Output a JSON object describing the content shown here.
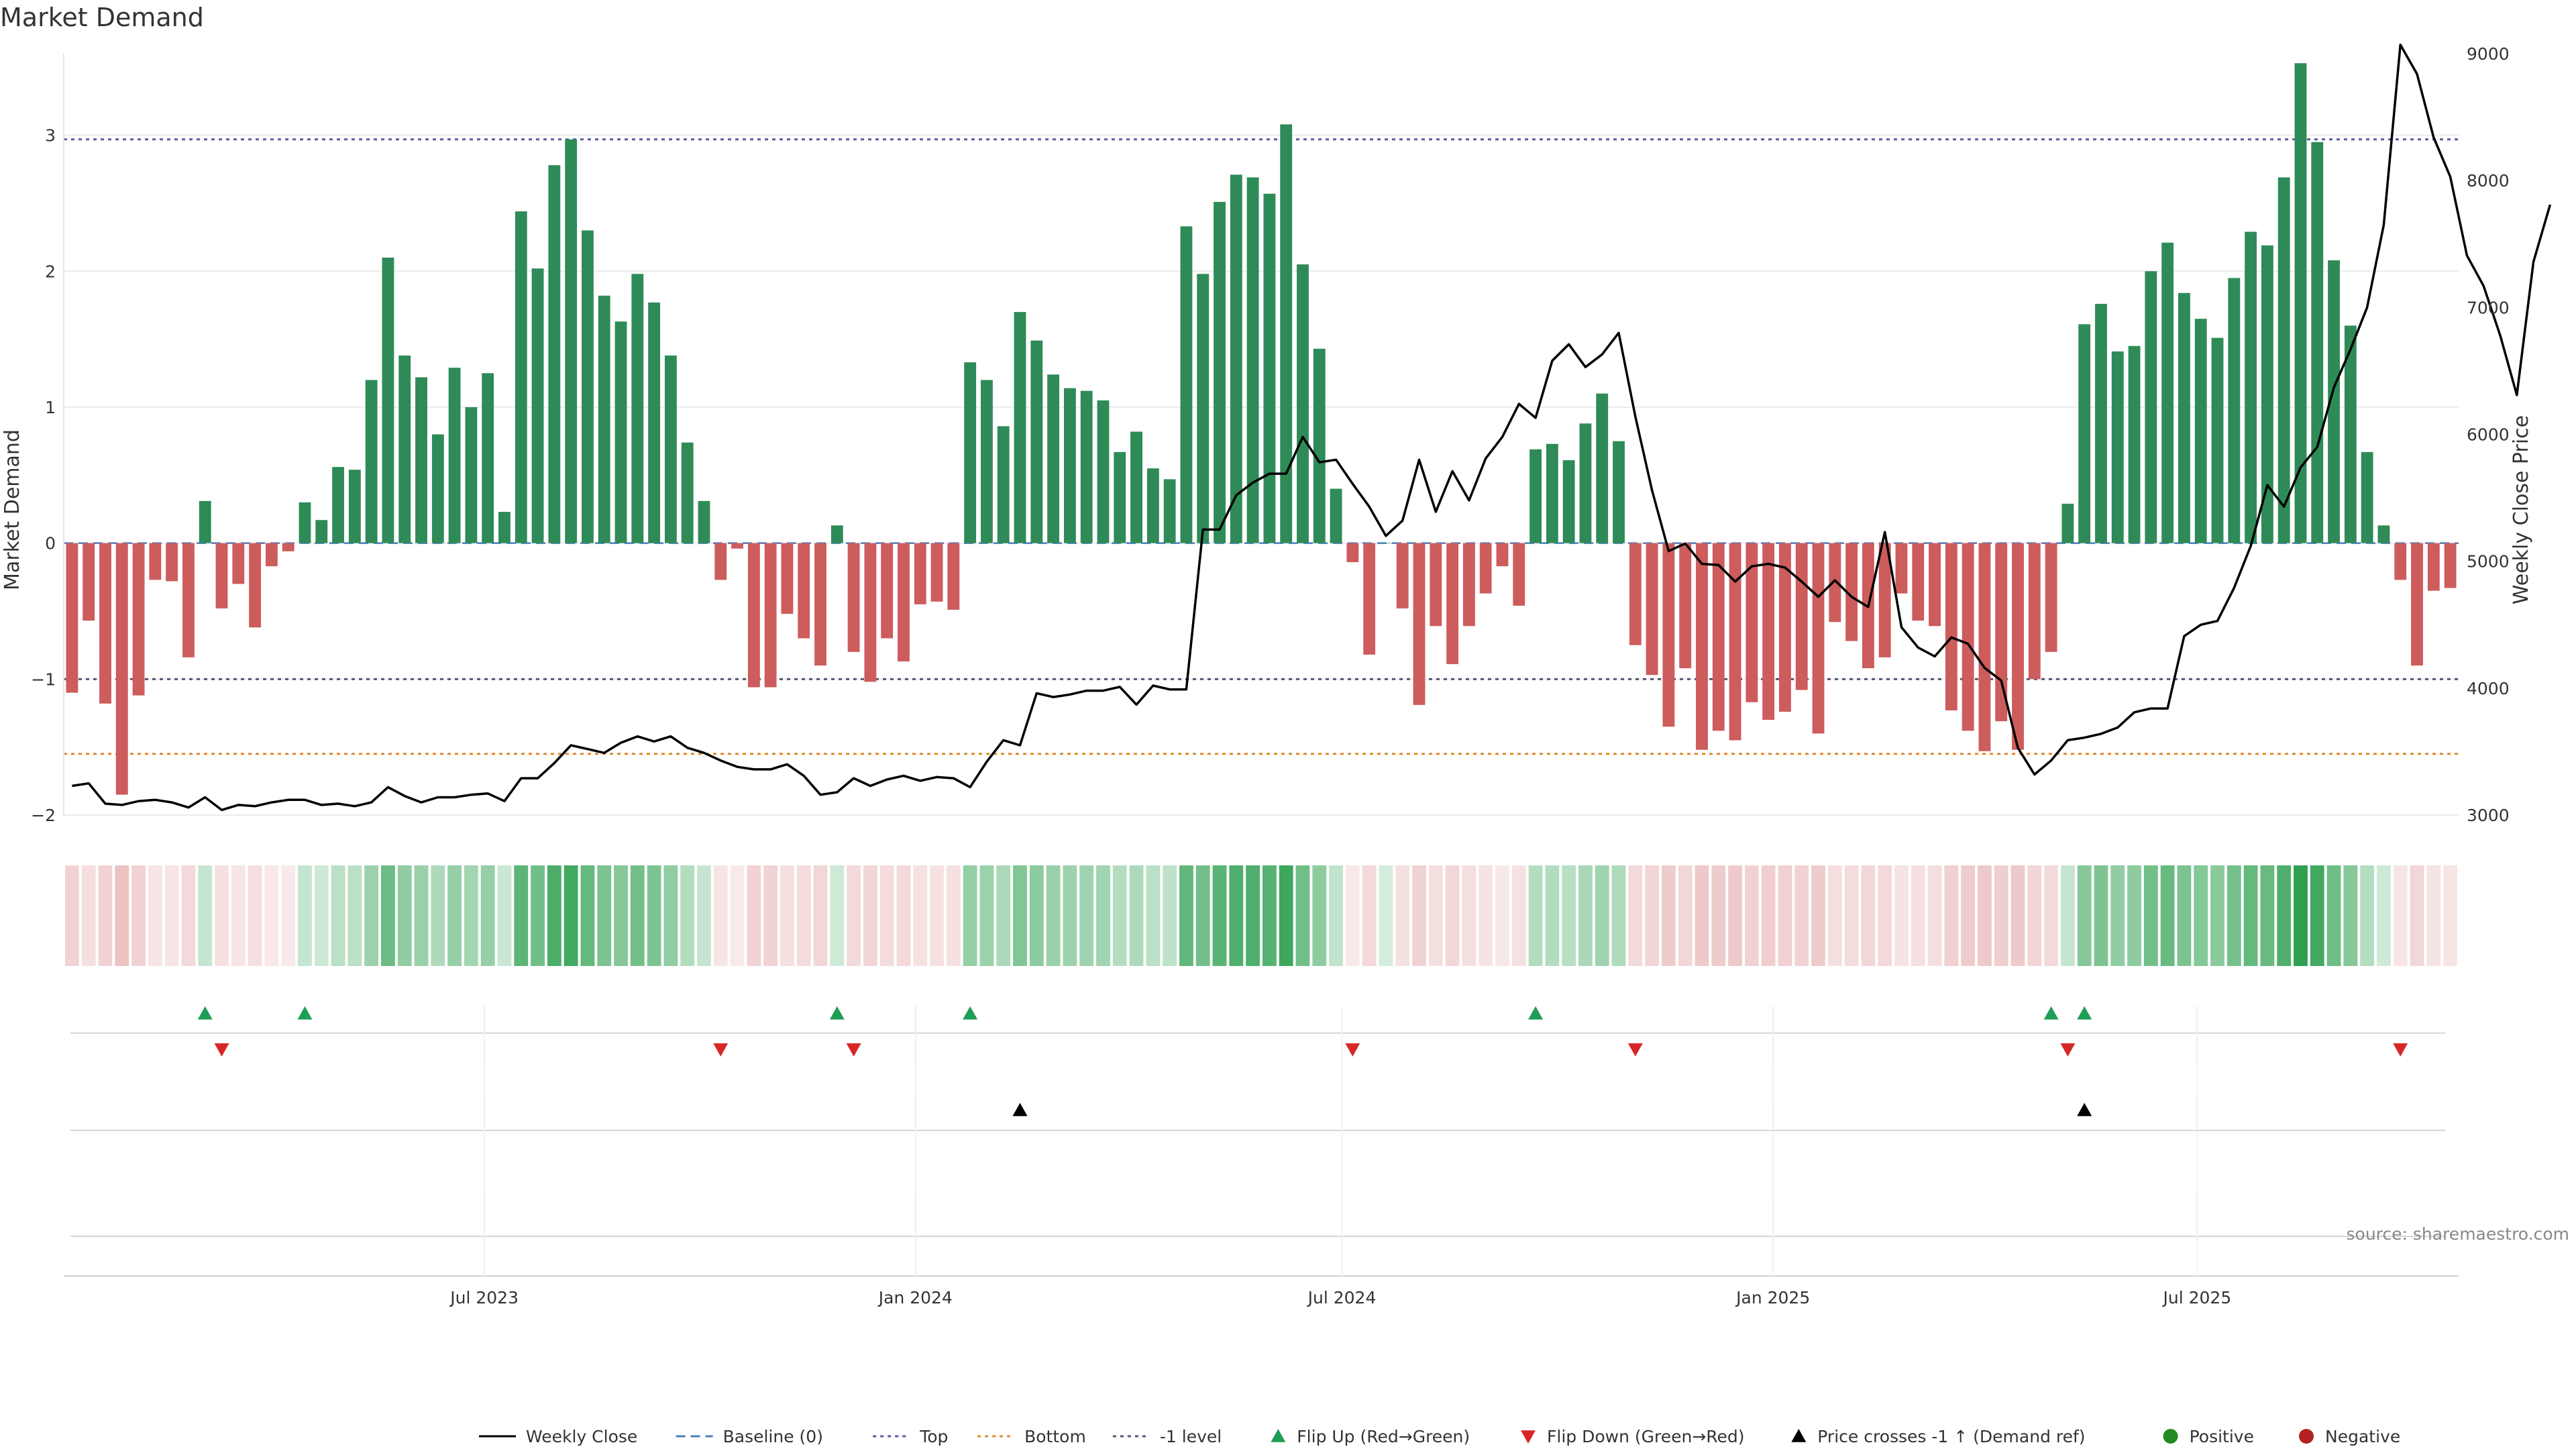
{
  "chart_data": {
    "type": "bar",
    "title": "Market Demand",
    "ylabel": "Market Demand",
    "y2label": "Weekly Close Price",
    "source": "source: sharemaestro.com",
    "ylim": [
      -2.0,
      3.6
    ],
    "y2lim": [
      3000,
      9000
    ],
    "yticks": [
      "−2",
      "−1",
      "0",
      "1",
      "2",
      "3"
    ],
    "y2ticks": [
      "3000",
      "4000",
      "5000",
      "6000",
      "7000",
      "8000",
      "9000"
    ],
    "x_start": "2023-01-06",
    "x_end": "2025-10-17",
    "xticks": [
      {
        "date": "2023-07-01",
        "label": "Jul 2023"
      },
      {
        "date": "2024-01-01",
        "label": "Jan 2024"
      },
      {
        "date": "2024-07-01",
        "label": "Jul 2024"
      },
      {
        "date": "2025-01-01",
        "label": "Jan 2025"
      },
      {
        "date": "2025-07-01",
        "label": "Jul 2025"
      }
    ],
    "reference_lines": [
      {
        "name": "Top",
        "value": 2.97,
        "color": "#5b5ba6",
        "style": "dotted"
      },
      {
        "name": "Bottom",
        "value": -1.55,
        "color": "#e08a2c",
        "style": "dotted"
      },
      {
        "name": "-1 level",
        "value": -1.0,
        "color": "#555577",
        "style": "dotted"
      }
    ],
    "colors": {
      "positive": "#2e8b57",
      "negative": "#cd5c5c",
      "line": "#000000",
      "flip_up": "#1f9d55",
      "flip_down": "#d62728",
      "cross": "#000000"
    },
    "series": [
      {
        "name": "Market Demand",
        "values": [
          -1.1,
          -0.57,
          -1.18,
          -1.85,
          -1.12,
          -0.27,
          -0.28,
          -0.84,
          0.31,
          -0.48,
          -0.3,
          -0.62,
          -0.17,
          -0.06,
          0.3,
          0.17,
          0.56,
          0.54,
          1.2,
          2.1,
          1.38,
          1.22,
          0.8,
          1.29,
          1.0,
          1.25,
          0.23,
          2.44,
          2.02,
          2.78,
          2.97,
          2.3,
          1.82,
          1.63,
          1.98,
          1.77,
          1.38,
          0.74,
          0.31,
          -0.27,
          -0.04,
          -1.06,
          -1.06,
          -0.52,
          -0.7,
          -0.9,
          0.13,
          -0.8,
          -1.02,
          -0.7,
          -0.87,
          -0.45,
          -0.43,
          -0.49,
          1.33,
          1.2,
          0.86,
          1.7,
          1.49,
          1.24,
          1.14,
          1.12,
          1.05,
          0.67,
          0.82,
          0.55,
          0.47,
          2.33,
          1.98,
          2.51,
          2.71,
          2.69,
          2.57,
          3.08,
          2.05,
          1.43,
          0.4,
          -0.14,
          -0.82,
          0.0,
          -0.48,
          -1.19,
          -0.61,
          -0.89,
          -0.61,
          -0.37,
          -0.17,
          -0.46,
          0.69,
          0.73,
          0.61,
          0.88,
          1.1,
          0.75,
          -0.75,
          -0.97,
          -1.35,
          -0.92,
          -1.52,
          -1.38,
          -1.45,
          -1.17,
          -1.3,
          -1.24,
          -1.08,
          -1.4,
          -0.58,
          -0.72,
          -0.92,
          -0.84,
          -0.37,
          -0.57,
          -0.61,
          -1.23,
          -1.38,
          -1.53,
          -1.31,
          -1.52,
          -1.0,
          -0.8,
          0.29,
          1.61,
          1.76,
          1.41,
          1.45,
          2.0,
          2.21,
          1.84,
          1.65,
          1.51,
          1.95,
          2.29,
          2.19,
          2.69,
          3.53,
          2.95,
          2.08,
          1.6,
          0.67,
          0.13,
          -0.27,
          -0.9,
          -0.35,
          -0.33
        ]
      },
      {
        "name": "Weekly Close",
        "values": [
          3230,
          3250,
          3090,
          3080,
          3110,
          3120,
          3100,
          3060,
          3140,
          3040,
          3080,
          3070,
          3100,
          3120,
          3120,
          3080,
          3090,
          3070,
          3100,
          3220,
          3150,
          3100,
          3140,
          3140,
          3160,
          3170,
          3110,
          3290,
          3290,
          3410,
          3550,
          3520,
          3490,
          3570,
          3620,
          3580,
          3620,
          3530,
          3490,
          3430,
          3380,
          3360,
          3360,
          3400,
          3310,
          3160,
          3180,
          3290,
          3230,
          3280,
          3310,
          3270,
          3300,
          3290,
          3220,
          3420,
          3590,
          3550,
          3960,
          3930,
          3950,
          3980,
          3980,
          4010,
          3870,
          4020,
          3990,
          3990,
          5250,
          5250,
          5520,
          5620,
          5690,
          5690,
          5980,
          5780,
          5800,
          5610,
          5430,
          5200,
          5320,
          5800,
          5390,
          5710,
          5480,
          5810,
          5980,
          6240,
          6130,
          6580,
          6710,
          6530,
          6630,
          6800,
          6140,
          5560,
          5080,
          5140,
          4980,
          4970,
          4840,
          4960,
          4980,
          4950,
          4840,
          4720,
          4850,
          4720,
          4640,
          5230,
          4480,
          4320,
          4250,
          4400,
          4350,
          4160,
          4060,
          3530,
          3320,
          3430,
          3590,
          3610,
          3640,
          3690,
          3810,
          3840,
          3840,
          4410,
          4500,
          4530,
          4790,
          5120,
          5600,
          5430,
          5740,
          5900,
          6370,
          6670,
          7000,
          7650,
          9070,
          8840,
          8340,
          8030,
          7410,
          7170,
          6780,
          6310,
          7360,
          7810
        ]
      },
      {
        "name": "Flip Up (Red→Green)",
        "indices": [
          8,
          14,
          46,
          54,
          88,
          119,
          121
        ]
      },
      {
        "name": "Flip Down (Green→Red)",
        "indices": [
          9,
          39,
          47,
          77,
          94,
          120,
          140
        ]
      },
      {
        "name": "Price crosses -1 ↑ (Demand ref)",
        "indices": [
          57,
          121
        ]
      }
    ]
  },
  "legend": [
    {
      "label": "Weekly Close",
      "kind": "solid-line",
      "color": "#000000"
    },
    {
      "label": "Baseline (0)",
      "kind": "dashed-line",
      "color": "#4a7fc1"
    },
    {
      "label": "Top",
      "kind": "dotted-line",
      "color": "#5b5ba6"
    },
    {
      "label": "Bottom",
      "kind": "dotted-line",
      "color": "#e08a2c"
    },
    {
      "label": "-1 level",
      "kind": "dotted-line",
      "color": "#555577"
    },
    {
      "label": "Flip Up (Red→Green)",
      "kind": "triangle-up",
      "color": "#1f9d55"
    },
    {
      "label": "Flip Down (Green→Red)",
      "kind": "triangle-down",
      "color": "#d62728"
    },
    {
      "label": "Price crosses -1 ↑ (Demand ref)",
      "kind": "triangle-up",
      "color": "#000000"
    },
    {
      "label": "Positive",
      "kind": "dot",
      "color": "#228b22"
    },
    {
      "label": "Negative",
      "kind": "dot",
      "color": "#b22222"
    }
  ]
}
